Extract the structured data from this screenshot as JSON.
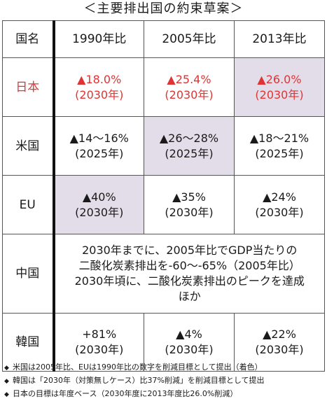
{
  "title": "＜主要排出国の約束草案＞",
  "header": {
    "corner": "国名",
    "columns": [
      "1990年比",
      "2005年比",
      "2013年比"
    ]
  },
  "rows": [
    {
      "country": "日本",
      "cells": [
        {
          "line1": "▲18.0%",
          "line2": "(2030年)"
        },
        {
          "line1": "▲25.4%",
          "line2": "(2030年)"
        },
        {
          "line1": "▲26.0%",
          "line2": "(2030年)"
        }
      ]
    },
    {
      "country": "米国",
      "cells": [
        {
          "line1": "▲14～16%",
          "line2": "(2025年)"
        },
        {
          "line1": "▲26～28%",
          "line2": "(2025年)"
        },
        {
          "line1": "▲18～21%",
          "line2": "(2025年)"
        }
      ]
    },
    {
      "country": "EU",
      "cells": [
        {
          "line1": "▲40%",
          "line2": "(2030年)"
        },
        {
          "line1": "▲35%",
          "line2": "(2030年)"
        },
        {
          "line1": "▲24%",
          "line2": "(2030年)"
        }
      ]
    },
    {
      "country": "中国",
      "text_lines": [
        "2030年までに、2005年比でGDP当たりの",
        "二酸化炭素排出を-60～-65%（2005年比）",
        "2030年頃に、二酸化炭素排出のピークを達成",
        "ほか"
      ]
    },
    {
      "country": "韓国",
      "cells": [
        {
          "line1": "+81%",
          "line2": "(2030年)"
        },
        {
          "line1": "▲4%",
          "line2": "(2030年)"
        },
        {
          "line1": "▲22%",
          "line2": "(2030年)"
        }
      ]
    }
  ],
  "notes": [
    "米国は2005年比、EUは1990年比の数字を削減目標として提出（着色）",
    "韓国は「2030年（対策無しケース）比37%削減」を削減目標として提出",
    "日本の目標は年度ベース（2030年度に2013年度比26.0%削減）"
  ],
  "note_bullet": "◆",
  "colors": {
    "japan_text": "#e03434",
    "shaded_cell": "#e3dde9",
    "border": "#555555",
    "label_divider": "#111111"
  }
}
